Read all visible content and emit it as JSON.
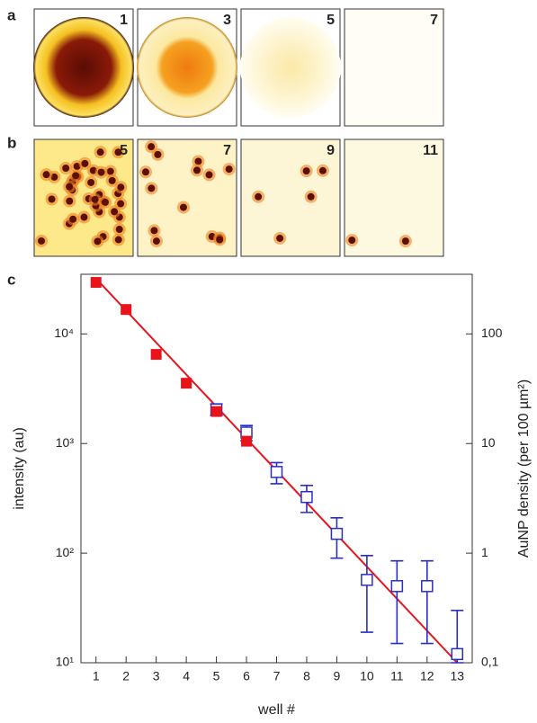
{
  "panel_a": {
    "label": "a",
    "image_labels": [
      "1",
      "3",
      "5",
      "7"
    ]
  },
  "panel_b": {
    "label": "b",
    "image_labels": [
      "5",
      "7",
      "9",
      "11"
    ]
  },
  "chart_data": {
    "type": "scatter",
    "panel_label": "c",
    "x_label": "well #",
    "y_label": "intensity (au)",
    "y2_label": "AuNP density (per 100 µm²)",
    "xlim": [
      0.5,
      13.5
    ],
    "xticks": [
      1,
      2,
      3,
      4,
      5,
      6,
      7,
      8,
      9,
      10,
      11,
      12,
      13
    ],
    "ylim": [
      10,
      35000
    ],
    "yticks": [
      {
        "value": 10,
        "label": "10¹"
      },
      {
        "value": 100,
        "label": "10²"
      },
      {
        "value": 1000,
        "label": "10³"
      },
      {
        "value": 10000,
        "label": "10⁴"
      }
    ],
    "y2lim": [
      0.1,
      350
    ],
    "y2ticks": [
      {
        "value": 0.1,
        "label": "0,1"
      },
      1,
      10,
      100
    ],
    "log_scale": true,
    "intensity": {
      "color": "#e8141c",
      "x": [
        1,
        2,
        3,
        4,
        5,
        6
      ],
      "values": [
        29500,
        16700,
        6500,
        3550,
        1960,
        1050
      ]
    },
    "density": {
      "color": "#2a2fc4",
      "axis": "y2",
      "x": [
        5,
        6,
        7,
        8,
        9,
        10,
        11,
        12,
        13
      ],
      "values": [
        20.5,
        12.6,
        5.5,
        3.25,
        1.5,
        0.57,
        0.5,
        0.5,
        0.12
      ],
      "errors": [
        2.5,
        2,
        1.2,
        0.9,
        0.6,
        0.38,
        0.35,
        0.35,
        0.18
      ]
    },
    "fit": {
      "color": "#e8141c",
      "x": [
        1,
        13
      ],
      "values": [
        32000,
        10
      ]
    }
  }
}
